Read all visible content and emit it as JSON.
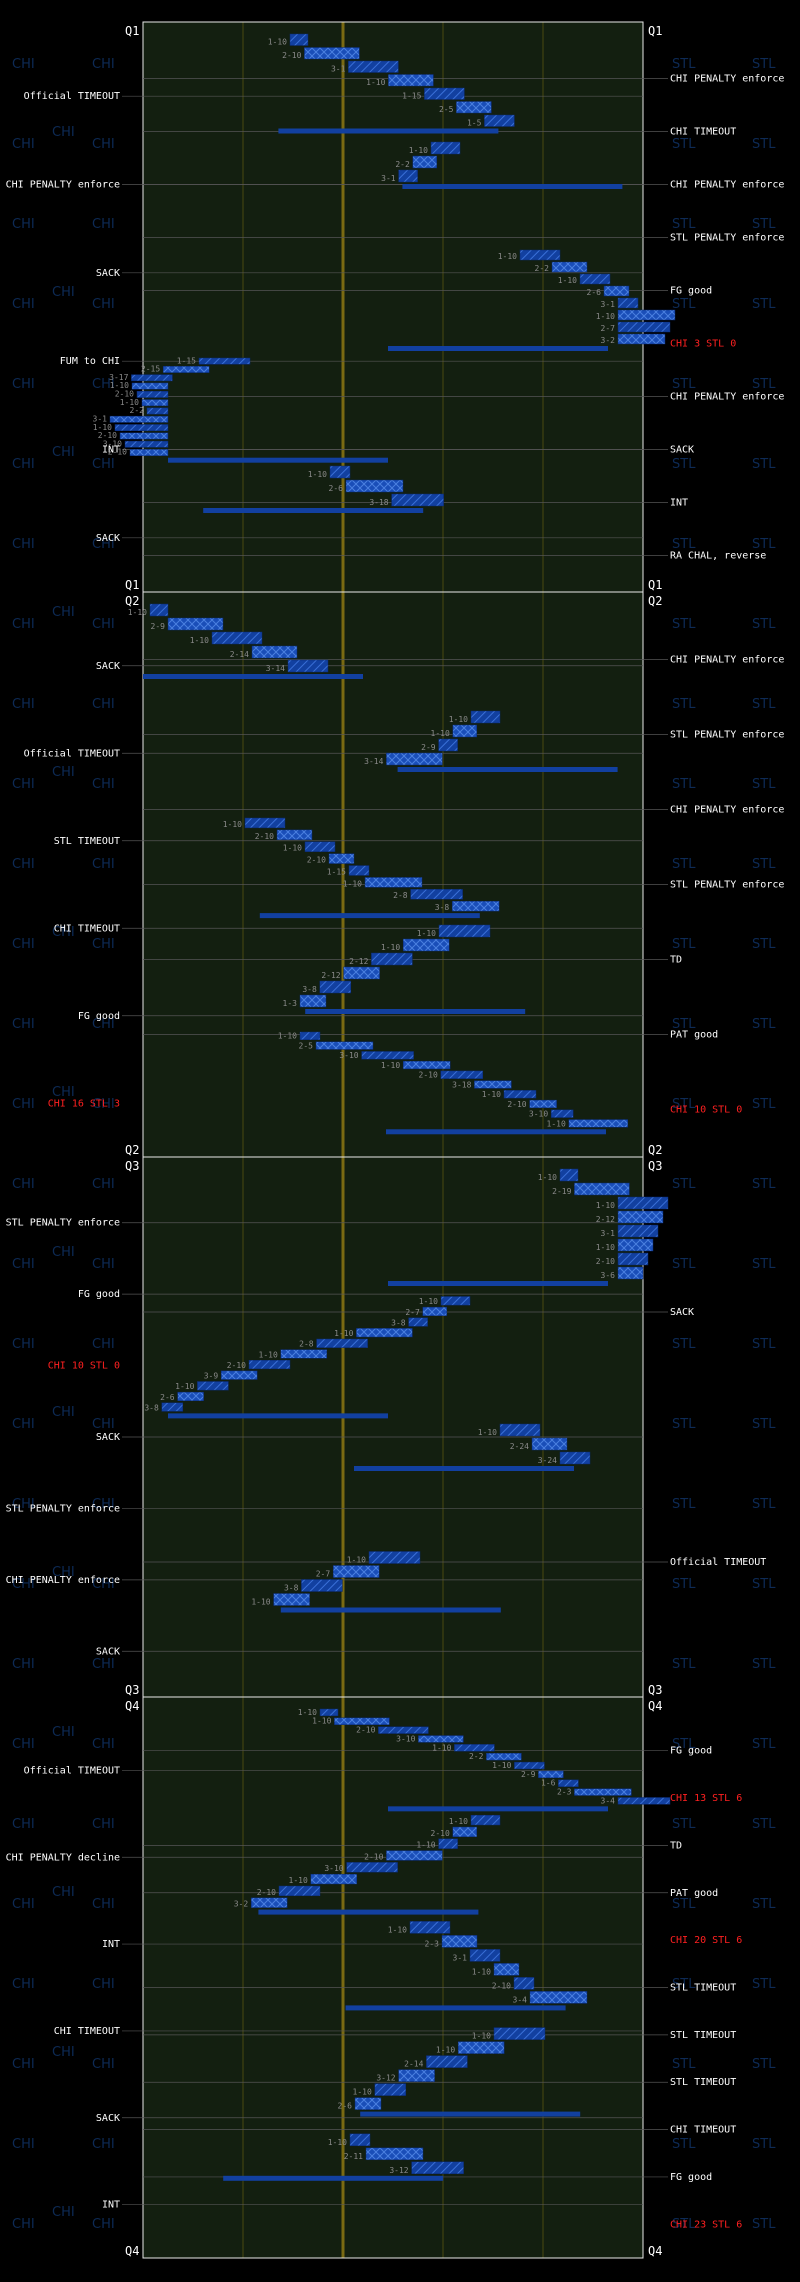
{
  "chart_data": {
    "type": "drive-chart",
    "teams": [
      "CHI",
      "STL"
    ],
    "watermarks": [
      "CHI",
      "STL"
    ],
    "quarters": [
      {
        "label": "Q1",
        "drives": [
          {
            "plays": [
              "1-10",
              "2-10",
              "3-1",
              "1-10",
              "1-15",
              "2-5",
              "1-5"
            ]
          },
          {
            "plays": [
              "1-10",
              "2-2",
              "3-1"
            ]
          },
          {
            "plays": [
              "1-10",
              "2-2",
              "1-10",
              "2-6",
              "3-1",
              "1-10",
              "2-7",
              "3-2"
            ]
          },
          {
            "plays": [
              "1-15",
              "2-15",
              "3-17",
              "1-10",
              "2-10",
              "1-10",
              "2-2",
              "3-1",
              "1-10",
              "2-10",
              "3-10",
              "2-10"
            ]
          },
          {
            "plays": [
              "1-10",
              "2-6",
              "3-18"
            ]
          }
        ],
        "left_events": [
          {
            "text": "Official TIMEOUT",
            "color": "white"
          },
          {
            "text": "CHI PENALTY enforce",
            "color": "white"
          },
          {
            "text": "SACK",
            "color": "white"
          },
          {
            "text": "FUM to CHI",
            "color": "white"
          },
          {
            "text": "INT",
            "color": "white"
          },
          {
            "text": "SACK",
            "color": "white"
          }
        ],
        "right_events": [
          {
            "text": "CHI PENALTY enforce",
            "color": "white"
          },
          {
            "text": "CHI TIMEOUT",
            "color": "white"
          },
          {
            "text": "CHI PENALTY enforce",
            "color": "white"
          },
          {
            "text": "STL PENALTY enforce",
            "color": "white"
          },
          {
            "text": "FG good",
            "color": "white"
          },
          {
            "text": "CHI 3 STL 0",
            "color": "red"
          },
          {
            "text": "CHI PENALTY enforce",
            "color": "white"
          },
          {
            "text": "SACK",
            "color": "white"
          },
          {
            "text": "INT",
            "color": "white"
          },
          {
            "text": "RA CHAL, reverse",
            "color": "white"
          }
        ]
      },
      {
        "label": "Q2",
        "drives": [
          {
            "plays": [
              "1-10",
              "2-9",
              "1-10",
              "2-14",
              "3-14"
            ]
          },
          {
            "plays": [
              "1-10",
              "1-10",
              "2-9",
              "3-14"
            ]
          },
          {
            "plays": [
              "1-10",
              "2-10",
              "1-10",
              "2-10",
              "1-15",
              "1-10",
              "2-8",
              "3-8"
            ]
          },
          {
            "plays": [
              "1-10",
              "1-10",
              "2-12",
              "2-12",
              "3-8",
              "1-3"
            ]
          },
          {
            "plays": [
              "1-10",
              "2-5",
              "3-10",
              "1-10",
              "2-10",
              "3-18",
              "1-10",
              "2-10",
              "3-10",
              "1-10"
            ]
          }
        ],
        "left_events": [
          {
            "text": "SACK",
            "color": "white"
          },
          {
            "text": "Official TIMEOUT",
            "color": "white"
          },
          {
            "text": "STL TIMEOUT",
            "color": "white"
          },
          {
            "text": "CHI TIMEOUT",
            "color": "white"
          },
          {
            "text": "FG good",
            "color": "white"
          },
          {
            "text": "CHI 16 STL 3",
            "color": "red"
          }
        ],
        "right_events": [
          {
            "text": "CHI PENALTY enforce",
            "color": "white"
          },
          {
            "text": "STL PENALTY enforce",
            "color": "white"
          },
          {
            "text": "CHI PENALTY enforce",
            "color": "white"
          },
          {
            "text": "STL PENALTY enforce",
            "color": "white"
          },
          {
            "text": "TD",
            "color": "white"
          },
          {
            "text": "PAT good",
            "color": "white"
          },
          {
            "text": "CHI 10 STL 0",
            "color": "red"
          }
        ]
      },
      {
        "label": "Q3",
        "drives": [
          {
            "plays": [
              "1-10",
              "2-19",
              "1-10",
              "2-12",
              "3-1",
              "1-10",
              "2-10",
              "3-6"
            ]
          },
          {
            "plays": [
              "1-10",
              "2-7",
              "3-8",
              "1-10",
              "2-8",
              "1-10",
              "2-10",
              "3-9",
              "1-10",
              "2-6",
              "3-8"
            ]
          },
          {
            "plays": [
              "1-10",
              "2-24",
              "3-24"
            ]
          },
          {
            "plays": [
              "1-10",
              "2-7",
              "3-8",
              "1-10"
            ]
          }
        ],
        "left_events": [
          {
            "text": "STL PENALTY enforce",
            "color": "white"
          },
          {
            "text": "FG good",
            "color": "white"
          },
          {
            "text": "CHI 10 STL 0",
            "color": "red"
          },
          {
            "text": "SACK",
            "color": "white"
          },
          {
            "text": "STL PENALTY enforce",
            "color": "white"
          },
          {
            "text": "CHI PENALTY enforce",
            "color": "white"
          },
          {
            "text": "SACK",
            "color": "white"
          }
        ],
        "right_events": [
          {
            "text": "SACK",
            "color": "white"
          },
          {
            "text": "Official TIMEOUT",
            "color": "white"
          }
        ]
      },
      {
        "label": "Q4",
        "drives": [
          {
            "plays": [
              "1-10",
              "1-10",
              "2-10",
              "3-10",
              "1-10",
              "2-2",
              "1-10",
              "2-9",
              "1-6",
              "2-3",
              "3-4"
            ]
          },
          {
            "plays": [
              "1-10",
              "2-10",
              "1-10",
              "2-10",
              "3-10",
              "1-10",
              "2-10",
              "3-2"
            ]
          },
          {
            "plays": [
              "1-10",
              "2-3",
              "3-1",
              "1-10",
              "2-10",
              "3-4"
            ]
          },
          {
            "plays": [
              "1-10",
              "1-10",
              "2-14",
              "3-12",
              "1-10",
              "2-6"
            ]
          },
          {
            "plays": [
              "1-10",
              "2-11",
              "3-12"
            ]
          }
        ],
        "left_events": [
          {
            "text": "Official TIMEOUT",
            "color": "white"
          },
          {
            "text": "CHI PENALTY decline",
            "color": "white"
          },
          {
            "text": "INT",
            "color": "white"
          },
          {
            "text": "CHI TIMEOUT",
            "color": "white"
          },
          {
            "text": "SACK",
            "color": "white"
          },
          {
            "text": "INT",
            "color": "white"
          }
        ],
        "right_events": [
          {
            "text": "FG good",
            "color": "white"
          },
          {
            "text": "CHI 13 STL 6",
            "color": "red"
          },
          {
            "text": "TD",
            "color": "white"
          },
          {
            "text": "PAT good",
            "color": "white"
          },
          {
            "text": "CHI 20 STL 6",
            "color": "red"
          },
          {
            "text": "STL TIMEOUT",
            "color": "white"
          },
          {
            "text": "STL TIMEOUT",
            "color": "white"
          },
          {
            "text": "STL TIMEOUT",
            "color": "white"
          },
          {
            "text": "CHI TIMEOUT",
            "color": "white"
          },
          {
            "text": "FG good",
            "color": "white"
          },
          {
            "text": "CHI 23 STL 6",
            "color": "red"
          }
        ]
      }
    ],
    "colors": {
      "field": "#131f10",
      "bar": "#1240a0",
      "bar_light": "#2f64cc",
      "fifty_line": "#7a6a12",
      "yard_line": "#4a4a10",
      "event_line": "#555555",
      "score_text": "#ff2020"
    }
  }
}
